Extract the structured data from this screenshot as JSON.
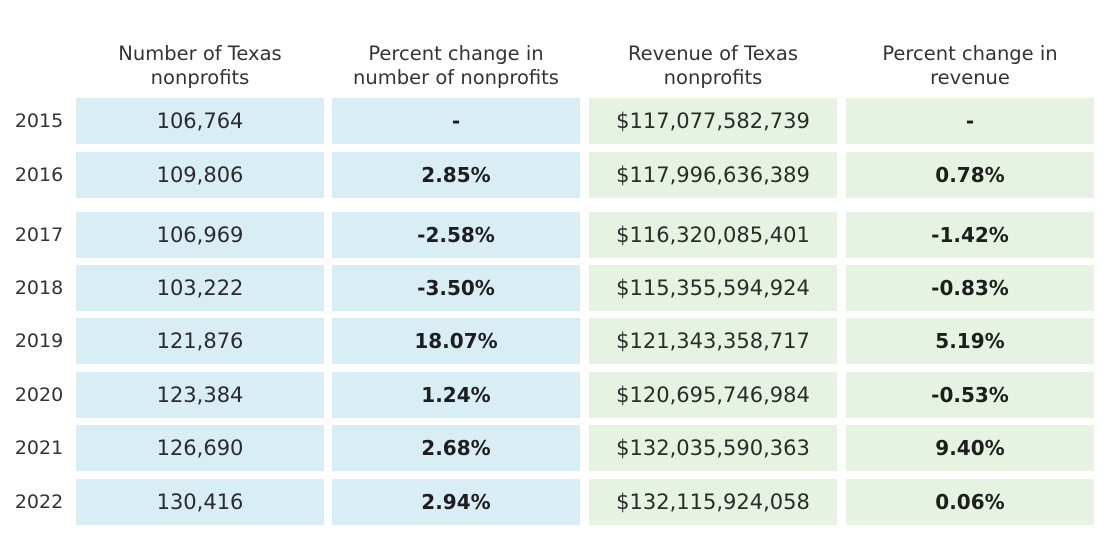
{
  "chart_data": {
    "type": "table",
    "columns": [
      "Number of Texas\nnonprofits",
      "Percent change in\nnumber of nonprofits",
      "Revenue of Texas\nnonprofits",
      "Percent change in\nrevenue"
    ],
    "rows": [
      {
        "year": "2015",
        "count": "106,764",
        "count_change": "-",
        "revenue": "$117,077,582,739",
        "revenue_change": "-"
      },
      {
        "year": "2016",
        "count": "109,806",
        "count_change": "2.85%",
        "revenue": "$117,996,636,389",
        "revenue_change": "0.78%"
      },
      {
        "year": "2017",
        "count": "106,969",
        "count_change": "-2.58%",
        "revenue": "$116,320,085,401",
        "revenue_change": "-1.42%"
      },
      {
        "year": "2018",
        "count": "103,222",
        "count_change": "-3.50%",
        "revenue": "$115,355,594,924",
        "revenue_change": "-0.83%"
      },
      {
        "year": "2019",
        "count": "121,876",
        "count_change": "18.07%",
        "revenue": "$121,343,358,717",
        "revenue_change": "5.19%"
      },
      {
        "year": "2020",
        "count": "123,384",
        "count_change": "1.24%",
        "revenue": "$120,695,746,984",
        "revenue_change": "-0.53%"
      },
      {
        "year": "2021",
        "count": "126,690",
        "count_change": "2.68%",
        "revenue": "$132,035,590,363",
        "revenue_change": "9.40%"
      },
      {
        "year": "2022",
        "count": "130,416",
        "count_change": "2.94%",
        "revenue": "$132,115,924,058",
        "revenue_change": "0.06%"
      }
    ]
  },
  "colors": {
    "nonprofit_columns_bg": "#d9edf5",
    "revenue_columns_bg": "#e7f3e2"
  }
}
